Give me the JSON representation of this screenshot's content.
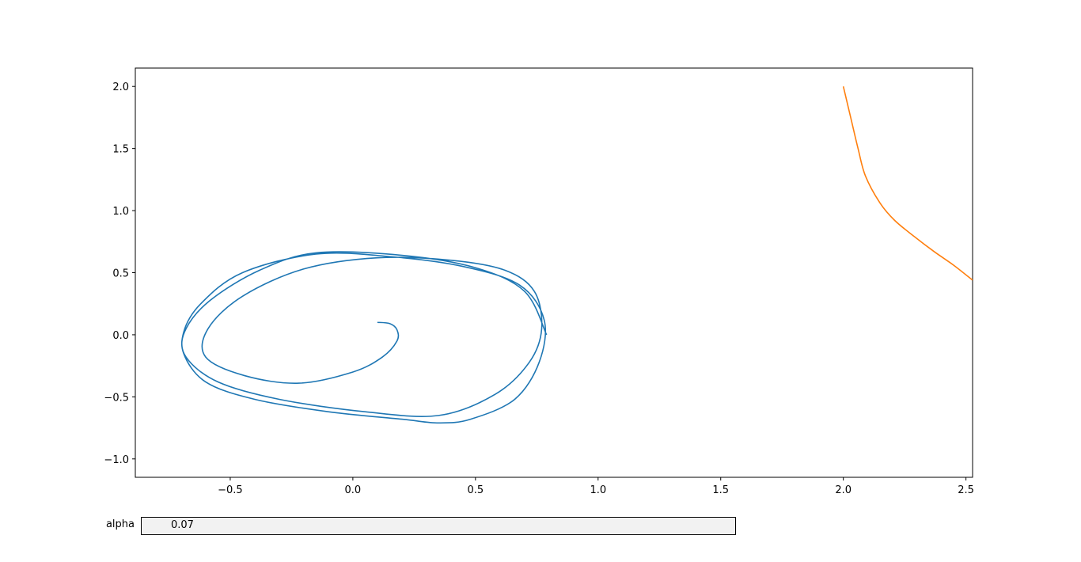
{
  "chart_data": {
    "type": "line",
    "title": "",
    "xlabel": "",
    "ylabel": "",
    "xlim": [
      -0.887,
      2.527
    ],
    "ylim": [
      -1.148,
      2.148
    ],
    "grid": false,
    "x_ticks": [
      -0.5,
      0.0,
      0.5,
      1.0,
      1.5,
      2.0,
      2.5
    ],
    "x_tick_labels": [
      "−0.5",
      "0.0",
      "0.5",
      "1.0",
      "1.5",
      "2.0",
      "2.5"
    ],
    "y_ticks": [
      -1.0,
      -0.5,
      0.0,
      0.5,
      1.0,
      1.5,
      2.0
    ],
    "y_tick_labels": [
      "−1.0",
      "−0.5",
      "0.0",
      "0.5",
      "1.0",
      "1.5",
      "2.0"
    ],
    "series": [
      {
        "color": "#1f77b4",
        "x": [
          0.1,
          0.15,
          0.18,
          0.18,
          0.12,
          0.0,
          -0.22,
          -0.44,
          -0.6,
          -0.59,
          -0.45,
          -0.2,
          0.1,
          0.4,
          0.62,
          0.74,
          0.77,
          0.72,
          0.58,
          0.35,
          0.05,
          -0.3,
          -0.55,
          -0.68,
          -0.69,
          -0.62,
          -0.45,
          -0.15,
          0.15,
          0.45,
          0.68,
          0.78,
          0.76,
          0.66,
          0.48,
          0.35,
          0.2,
          -0.1,
          -0.4,
          -0.6,
          -0.69,
          -0.68,
          -0.58,
          -0.38,
          -0.15,
          0.2,
          0.5,
          0.7,
          0.79
        ],
        "y": [
          0.1,
          0.09,
          0.04,
          -0.05,
          -0.18,
          -0.3,
          -0.39,
          -0.33,
          -0.18,
          0.05,
          0.31,
          0.53,
          0.62,
          0.6,
          0.52,
          0.35,
          0.05,
          -0.22,
          -0.48,
          -0.65,
          -0.62,
          -0.52,
          -0.38,
          -0.18,
          0.02,
          0.25,
          0.5,
          0.65,
          0.63,
          0.55,
          0.4,
          0.12,
          -0.22,
          -0.52,
          -0.68,
          -0.71,
          -0.68,
          -0.62,
          -0.52,
          -0.38,
          -0.15,
          0.05,
          0.28,
          0.52,
          0.66,
          0.64,
          0.54,
          0.35,
          0.0
        ]
      },
      {
        "color": "#ff7f0e",
        "x": [
          2.0,
          2.03,
          2.06,
          2.09,
          2.15,
          2.21,
          2.29,
          2.37,
          2.45,
          2.527
        ],
        "y": [
          2.0,
          1.75,
          1.5,
          1.28,
          1.06,
          0.92,
          0.79,
          0.67,
          0.56,
          0.44
        ]
      }
    ]
  },
  "slider": {
    "label": "alpha",
    "value": "0.07"
  }
}
